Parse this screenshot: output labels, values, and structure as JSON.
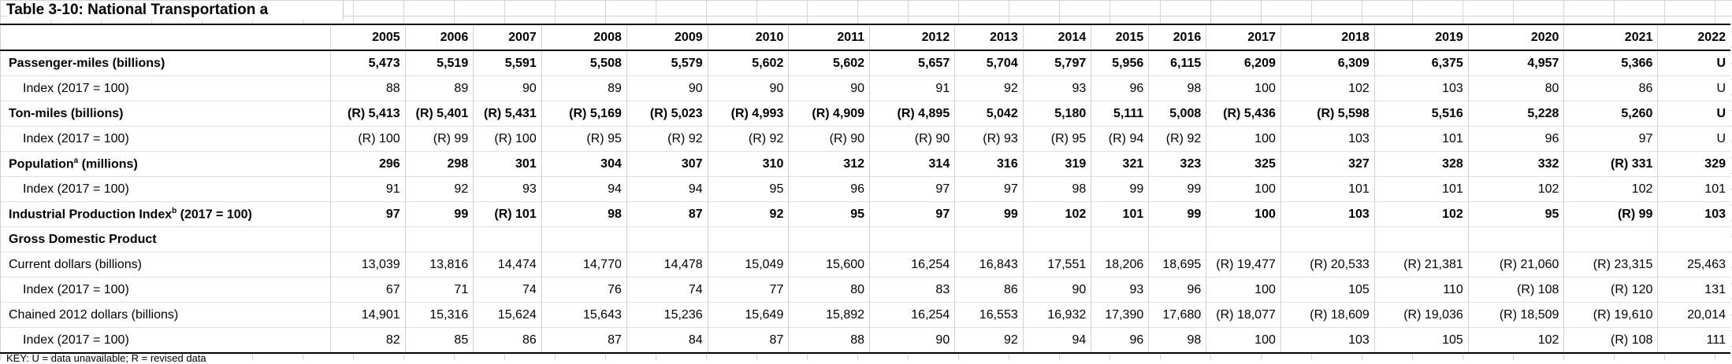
{
  "title": "Table 3-10:  National Transportation a",
  "years": [
    "2005",
    "2006",
    "2007",
    "2008",
    "2009",
    "2010",
    "2011",
    "2012",
    "2013",
    "2014",
    "2015",
    "2016",
    "2017",
    "2018",
    "2019",
    "2020",
    "2021",
    "2022"
  ],
  "rows": [
    {
      "label": "Passenger-miles (billions)",
      "bold": true,
      "indent": false,
      "values": [
        "5,473",
        "5,519",
        "5,591",
        "5,508",
        "5,579",
        "5,602",
        "5,602",
        "5,657",
        "5,704",
        "5,797",
        "5,956",
        "6,115",
        "6,209",
        "6,309",
        "6,375",
        "4,957",
        "5,366",
        "U"
      ]
    },
    {
      "label": "Index (2017 = 100)",
      "bold": false,
      "indent": true,
      "values": [
        "88",
        "89",
        "90",
        "89",
        "90",
        "90",
        "90",
        "91",
        "92",
        "93",
        "96",
        "98",
        "100",
        "102",
        "103",
        "80",
        "86",
        "U"
      ]
    },
    {
      "label": "Ton-miles (billions)",
      "bold": true,
      "indent": false,
      "values": [
        "(R) 5,413",
        "(R) 5,401",
        "(R) 5,431",
        "(R) 5,169",
        "(R) 5,023",
        "(R) 4,993",
        "(R) 4,909",
        "(R) 4,895",
        "5,042",
        "5,180",
        "5,111",
        "5,008",
        "(R) 5,436",
        "(R) 5,598",
        "5,516",
        "5,228",
        "5,260",
        "U"
      ]
    },
    {
      "label": "Index (2017 = 100)",
      "bold": false,
      "indent": true,
      "values": [
        "(R) 100",
        "(R) 99",
        "(R) 100",
        "(R) 95",
        "(R) 92",
        "(R) 92",
        "(R) 90",
        "(R) 90",
        "(R) 93",
        "(R) 95",
        "(R) 94",
        "(R) 92",
        "100",
        "103",
        "101",
        "96",
        "97",
        "U"
      ]
    },
    {
      "label": "Population",
      "sup": "a",
      "label_suffix": " (millions)",
      "bold": true,
      "indent": false,
      "values": [
        "296",
        "298",
        "301",
        "304",
        "307",
        "310",
        "312",
        "314",
        "316",
        "319",
        "321",
        "323",
        "325",
        "327",
        "328",
        "332",
        "(R) 331",
        "329"
      ]
    },
    {
      "label": "Index (2017 = 100)",
      "bold": false,
      "indent": true,
      "values": [
        "91",
        "92",
        "93",
        "94",
        "94",
        "95",
        "96",
        "97",
        "97",
        "98",
        "99",
        "99",
        "100",
        "101",
        "101",
        "102",
        "102",
        "101"
      ]
    },
    {
      "label": "Industrial Production Index",
      "sup": "b",
      "label_suffix": " (2017 = 100)",
      "bold": true,
      "indent": false,
      "values": [
        "97",
        "99",
        "(R) 101",
        "98",
        "87",
        "92",
        "95",
        "97",
        "99",
        "102",
        "101",
        "99",
        "100",
        "103",
        "102",
        "95",
        "(R) 99",
        "103"
      ]
    },
    {
      "label": "Gross Domestic Product",
      "bold": true,
      "indent": false,
      "values": [
        "",
        "",
        "",
        "",
        "",
        "",
        "",
        "",
        "",
        "",
        "",
        "",
        "",
        "",
        "",
        "",
        "",
        ""
      ]
    },
    {
      "label": "Current dollars (billions)",
      "bold": false,
      "indent": false,
      "values": [
        "13,039",
        "13,816",
        "14,474",
        "14,770",
        "14,478",
        "15,049",
        "15,600",
        "16,254",
        "16,843",
        "17,551",
        "18,206",
        "18,695",
        "(R) 19,477",
        "(R) 20,533",
        "(R) 21,381",
        "(R) 21,060",
        "(R) 23,315",
        "25,463"
      ]
    },
    {
      "label": "Index (2017 = 100)",
      "bold": false,
      "indent": true,
      "values": [
        "67",
        "71",
        "74",
        "76",
        "74",
        "77",
        "80",
        "83",
        "86",
        "90",
        "93",
        "96",
        "100",
        "105",
        "110",
        "(R) 108",
        "(R) 120",
        "131"
      ]
    },
    {
      "label": "Chained 2012 dollars (billions)",
      "bold": false,
      "indent": false,
      "values": [
        "14,901",
        "15,316",
        "15,624",
        "15,643",
        "15,236",
        "15,649",
        "15,892",
        "16,254",
        "16,553",
        "16,932",
        "17,390",
        "17,680",
        "(R) 18,077",
        "(R) 18,609",
        "(R) 19,036",
        "(R) 18,509",
        "(R) 19,610",
        "20,014"
      ]
    },
    {
      "label": "Index (2017 = 100)",
      "bold": false,
      "indent": true,
      "values": [
        "82",
        "85",
        "86",
        "87",
        "84",
        "87",
        "88",
        "90",
        "92",
        "94",
        "96",
        "98",
        "100",
        "103",
        "105",
        "102",
        "(R) 108",
        "111"
      ]
    }
  ],
  "footnote": "KEY: U = data unavailable; R = revised data"
}
